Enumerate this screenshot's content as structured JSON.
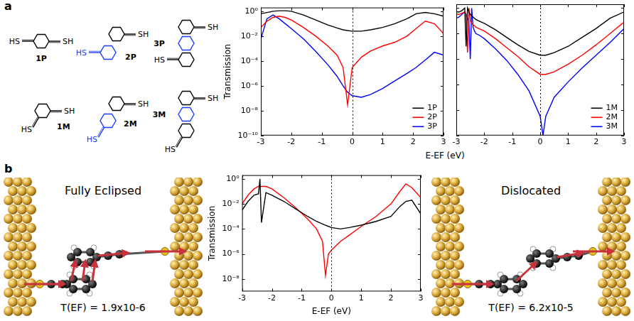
{
  "panel_labels": [
    "a",
    "b"
  ],
  "molecules": [
    {
      "label": "1P",
      "groups": [
        "HS",
        "SH"
      ]
    },
    {
      "label": "2P",
      "groups": [
        "HS",
        "SH"
      ]
    },
    {
      "label": "3P",
      "groups": [
        "HS",
        "SH"
      ]
    },
    {
      "label": "1M",
      "groups": [
        "HS",
        "SH"
      ]
    },
    {
      "label": "2M",
      "groups": [
        "HS",
        "SH"
      ]
    },
    {
      "label": "3M",
      "groups": [
        "HS",
        "SH"
      ]
    }
  ],
  "chart_data": [
    {
      "type": "line",
      "x_label": "E-EF (eV)",
      "y_label": "Transmission",
      "x": [
        -3,
        -2.8,
        -2.6,
        -2.4,
        -2.2,
        -2,
        -1.6,
        -1.2,
        -0.8,
        -0.5,
        -0.3,
        -0.15,
        0,
        0.3,
        0.6,
        1,
        1.4,
        1.8,
        2.1,
        2.4,
        2.7,
        3
      ],
      "series": [
        {
          "name": "1P",
          "color": "#000000",
          "values": [
            0.63,
            0.8,
            1,
            1.1,
            1.1,
            1,
            0.5,
            0.2,
            0.08,
            0.045,
            0.032,
            0.028,
            0.025,
            0.025,
            0.032,
            0.05,
            0.1,
            0.25,
            0.63,
            0.8,
            0.63,
            0.4
          ]
        },
        {
          "name": "2P",
          "color": "#ff0000",
          "values": [
            0.05,
            0.16,
            0.32,
            0.4,
            0.32,
            0.2,
            0.05,
            0.01,
            0.0016,
            0.0003,
            3e-05,
            3e-08,
            3e-05,
            0.0002,
            0.00063,
            0.0016,
            0.0032,
            0.01,
            0.04,
            0.16,
            0.1,
            0.016
          ]
        },
        {
          "name": "3P",
          "color": "#0000ff",
          "values": [
            0.006,
            0.25,
            0.5,
            0.25,
            0.1,
            0.04,
            0.006,
            0.0006,
            5e-05,
            6e-06,
            1e-06,
            3e-07,
            1.6e-07,
            1.2e-07,
            2e-07,
            6e-07,
            2.5e-06,
            1e-05,
            3e-05,
            0.00012,
            0.0005,
            0.0003
          ]
        }
      ],
      "xlim": [
        -3,
        3
      ],
      "xticks": [
        -3,
        -2,
        -1,
        0,
        1,
        2,
        3
      ],
      "ylim": [
        1e-10,
        2
      ],
      "yticks": [
        {
          "value": 1e-10,
          "label": "10⁻¹⁰"
        },
        {
          "value": 1e-08,
          "label": "10⁻⁸"
        },
        {
          "value": 1e-06,
          "label": "10⁻⁶"
        },
        {
          "value": 0.0001,
          "label": "10⁻⁴"
        },
        {
          "value": 0.01,
          "label": "10⁻²"
        },
        {
          "value": 1,
          "label": "10⁰"
        }
      ],
      "log": "y",
      "grid": false,
      "legend": "lower right",
      "reference_x": 0
    },
    {
      "type": "line",
      "x": [
        -3,
        -2.9,
        -2.8,
        -2.7,
        -2.65,
        -2.6,
        -2.55,
        -2.5,
        -2.45,
        -2.4,
        -2.35,
        -2.3,
        -2.2,
        -2,
        -1.6,
        -1.2,
        -0.8,
        -0.4,
        0,
        0.1,
        0.2,
        0.5,
        1,
        1.5,
        2,
        2.5,
        3
      ],
      "series": [
        {
          "name": "1M",
          "color": "#000000",
          "values": [
            0.5,
            0.5,
            0.63,
            1,
            0.001,
            1,
            0.5,
            0.32,
            0.25,
            0.2,
            0.16,
            0.13,
            0.1,
            0.063,
            0.02,
            0.005,
            0.0013,
            0.0004,
            0.0002,
            0.0002,
            0.0002,
            0.00032,
            0.001,
            0.005,
            0.025,
            0.16,
            0.5
          ]
        },
        {
          "name": "2M",
          "color": "#ff0000",
          "values": [
            0.32,
            0.32,
            0.4,
            0.5,
            0.32,
            0.00032,
            1,
            0.1,
            0.063,
            0.05,
            0.04,
            0.032,
            0.025,
            0.016,
            0.004,
            0.0008,
            0.00016,
            2.5e-05,
            6.3e-06,
            6.3e-06,
            6.3e-06,
            1e-05,
            4e-05,
            0.0002,
            0.0013,
            0.01,
            0.08
          ]
        },
        {
          "name": "3M",
          "color": "#0000ff",
          "values": [
            0.16,
            0.2,
            0.32,
            0.5,
            0.32,
            0.16,
            0.1,
            0.0001,
            1,
            0.032,
            0.016,
            0.01,
            0.008,
            0.004,
            0.00063,
            8e-05,
            6.3e-06,
            3.2e-07,
            3.2e-09,
            1e-10,
            3.2e-09,
            1e-07,
            1.6e-06,
            2e-05,
            0.0002,
            0.002,
            0.025
          ]
        }
      ],
      "xlim": [
        -3,
        3
      ],
      "xticks": [
        -3,
        -2,
        -1,
        0,
        1,
        2,
        3
      ],
      "ylim": [
        1e-10,
        2
      ],
      "yticks": [
        {
          "value": 1e-10,
          "label": "10⁻¹⁰"
        },
        {
          "value": 1e-08,
          "label": "10⁻⁸"
        },
        {
          "value": 1e-06,
          "label": "10⁻⁶"
        },
        {
          "value": 0.0001,
          "label": "10⁻⁴"
        },
        {
          "value": 0.01,
          "label": "10⁻²"
        },
        {
          "value": 1,
          "label": "10⁰"
        }
      ],
      "log": "y",
      "grid": false,
      "legend": "lower right",
      "tick_labels": "x",
      "reference_x": 0
    },
    {
      "type": "line",
      "x_label": "E-EF (eV)",
      "y_label": "Transmission",
      "x": [
        -3,
        -2.8,
        -2.6,
        -2.45,
        -2.4,
        -2.35,
        -2.2,
        -2,
        -1.6,
        -1.2,
        -0.8,
        -0.5,
        -0.3,
        -0.2,
        -0.1,
        0,
        0.3,
        0.6,
        1,
        1.5,
        2,
        2.3,
        2.5,
        2.7,
        3
      ],
      "series": [
        {
          "color": "#000000",
          "values": [
            0.0032,
            0.016,
            0.05,
            0.063,
            1,
            0.00032,
            0.08,
            0.05,
            0.016,
            0.004,
            0.001,
            0.0004,
            0.00025,
            0.0002,
            0.00016,
            0.00013,
            0.0001,
            0.00013,
            0.0002,
            0.0004,
            0.001,
            0.0063,
            0.016,
            0.02,
            0.0016
          ]
        },
        {
          "color": "#ff0000",
          "values": [
            0.01,
            0.05,
            0.16,
            0.25,
            0.25,
            0.25,
            0.25,
            0.16,
            0.032,
            0.005,
            0.00063,
            0.0001,
            1e-05,
            2e-08,
            1e-06,
            2e-06,
            1e-05,
            3.2e-05,
            0.00016,
            0.001,
            0.01,
            0.1,
            0.4,
            0.2,
            0.032
          ]
        }
      ],
      "xlim": [
        -3,
        3
      ],
      "xticks": [
        -3,
        -2,
        -1,
        0,
        1,
        2,
        3
      ],
      "ylim": [
        1e-09,
        2
      ],
      "yticks": [
        {
          "value": 1e-08,
          "label": "10⁻⁸"
        },
        {
          "value": 1e-06,
          "label": "10⁻⁶"
        },
        {
          "value": 0.0001,
          "label": "10⁻⁴"
        },
        {
          "value": 0.01,
          "label": "10⁻²"
        },
        {
          "value": 1,
          "label": "10⁰"
        }
      ],
      "log": "y",
      "grid": false,
      "reference_x": 0
    }
  ],
  "structures": [
    {
      "title": "Fully Eclipsed",
      "annotation": "T(EF) = 1.9x10-6"
    },
    {
      "title": "Dislocated",
      "annotation": "T(EF) = 6.2x10-5"
    }
  ]
}
